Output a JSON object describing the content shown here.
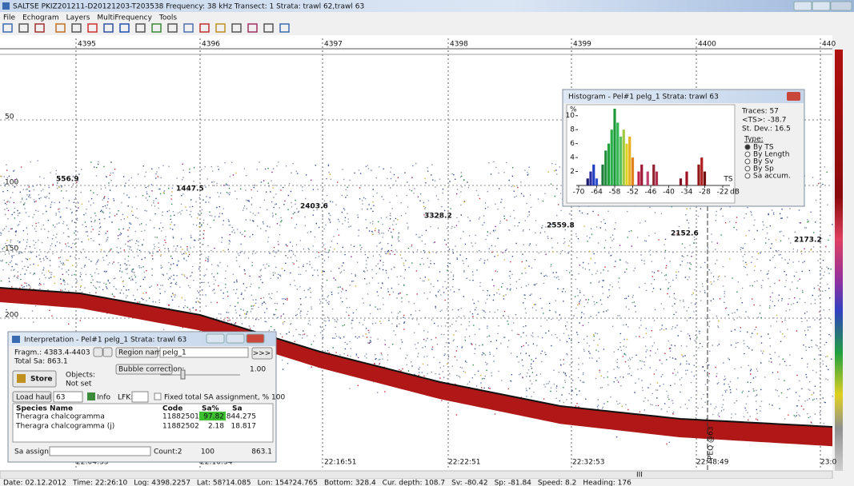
{
  "window": {
    "title": "SALTSE  PKIZ201211-D20121203-T203538  Frequency: 38 kHz  Transect: 1  Strata: trawl 62,trawl 63"
  },
  "menu": [
    "File",
    "Echogram",
    "Layers",
    "MultiFrequency",
    "Tools"
  ],
  "echogram": {
    "distance_labels": [
      "4395",
      "4396",
      "4397",
      "4398",
      "4399",
      "4400",
      "440"
    ],
    "depth_labels": [
      "50",
      "100",
      "150",
      "200"
    ],
    "time_labels": [
      "22:04:33",
      "22:10:34",
      "22:16:51",
      "22:22:51",
      "22:32:53",
      "22:48:49",
      "23:0"
    ],
    "region_labels": [
      "556.9",
      "1447.5",
      "2403.6",
      "3328.2",
      "2559.8",
      "2152.6",
      "2173.2"
    ],
    "marker_label": "PEQ @63",
    "scroll_label": "III"
  },
  "histogram": {
    "title": "Histogram - Pel#1 pelg_1  Strata: trawl 63",
    "y_label": "%",
    "x_label": "TS",
    "x_unit": "dB",
    "xlim": [
      -71.5,
      -20
    ],
    "ylim": [
      0,
      11
    ],
    "yticks": [
      2,
      4,
      6,
      8,
      10
    ],
    "xticks": [
      -70,
      -64,
      -58,
      -52,
      -46,
      -40,
      -34,
      -28,
      -22
    ],
    "x": [
      -67,
      -66,
      -65,
      -64,
      -62,
      -61,
      -60,
      -59,
      -58,
      -57,
      -56,
      -55,
      -54,
      -53,
      -52,
      -50,
      -49,
      -47,
      -45,
      -44,
      -36,
      -34,
      -30,
      -29,
      -28
    ],
    "values": [
      1,
      2,
      3,
      1,
      3,
      5,
      6,
      8,
      11,
      9,
      7,
      8,
      6,
      7,
      4,
      2,
      3,
      2,
      3,
      2,
      1,
      2,
      3,
      4,
      2
    ],
    "colors": [
      "#1a1a6e",
      "#2a2aa0",
      "#2040c0",
      "#3050d0",
      "#1e7a3a",
      "#1f8f3c",
      "#23a040",
      "#28b048",
      "#1c9a3a",
      "#30b850",
      "#58c060",
      "#a0c840",
      "#e0d020",
      "#e8b020",
      "#e08020",
      "#c02050",
      "#a01838",
      "#c04070",
      "#902030",
      "#b03050",
      "#801020",
      "#a01020",
      "#901818",
      "#b02020",
      "#701010"
    ],
    "stats": [
      "Traces: 57",
      "<TS>:  -38.7",
      "St. Dev.: 16.5"
    ],
    "type_label": "Type:",
    "options": [
      "By TS",
      "By Length",
      "By Sv",
      "By Sp",
      "Sa accum."
    ]
  },
  "interpretation": {
    "title": "Interpretation - Pel#1 pelg_1  Strata: trawl 63",
    "fragment": "Fragm.: 4383.4-4403",
    "total_sa": "Total Sa: 863.1",
    "region_name_button": "Region name:",
    "region_name": "pelg_1",
    "go_button": ">>>",
    "bubble_button": "Bubble correction:",
    "bubble_value": "1.00",
    "store_button": "Store",
    "objects_label": "Objects:",
    "objects_value": "Not set",
    "load_haul_button": "Load haul",
    "haul": "63",
    "info_button": "Info",
    "lfk_label": "LFK:",
    "fixed_label": "Fixed total SA assignment, % 100",
    "table": {
      "header": [
        "Species Name",
        "Code",
        "Sa%",
        "Sa"
      ],
      "rows": [
        [
          "Theragra chalcogramma",
          "11882501",
          "97.82",
          "844.275"
        ],
        [
          "Theragra chalcogramma (j)",
          "11882502",
          "2.18",
          "18.817"
        ]
      ]
    },
    "footer": [
      "Sa assignment:",
      "Count:2",
      "100",
      "863.1"
    ]
  },
  "status_bar": [
    "Date: 02.12.2012",
    "Time: 22:26:10",
    "Log: 4398.2257",
    "Lat: 58?14.085",
    "Lon: 154?24.765",
    "Bottom: 328.4",
    "Cur. depth: 108.7",
    "Sv: -80.42",
    "Sp: -81.84",
    "Speed: 8.2",
    "Heading: 176"
  ]
}
